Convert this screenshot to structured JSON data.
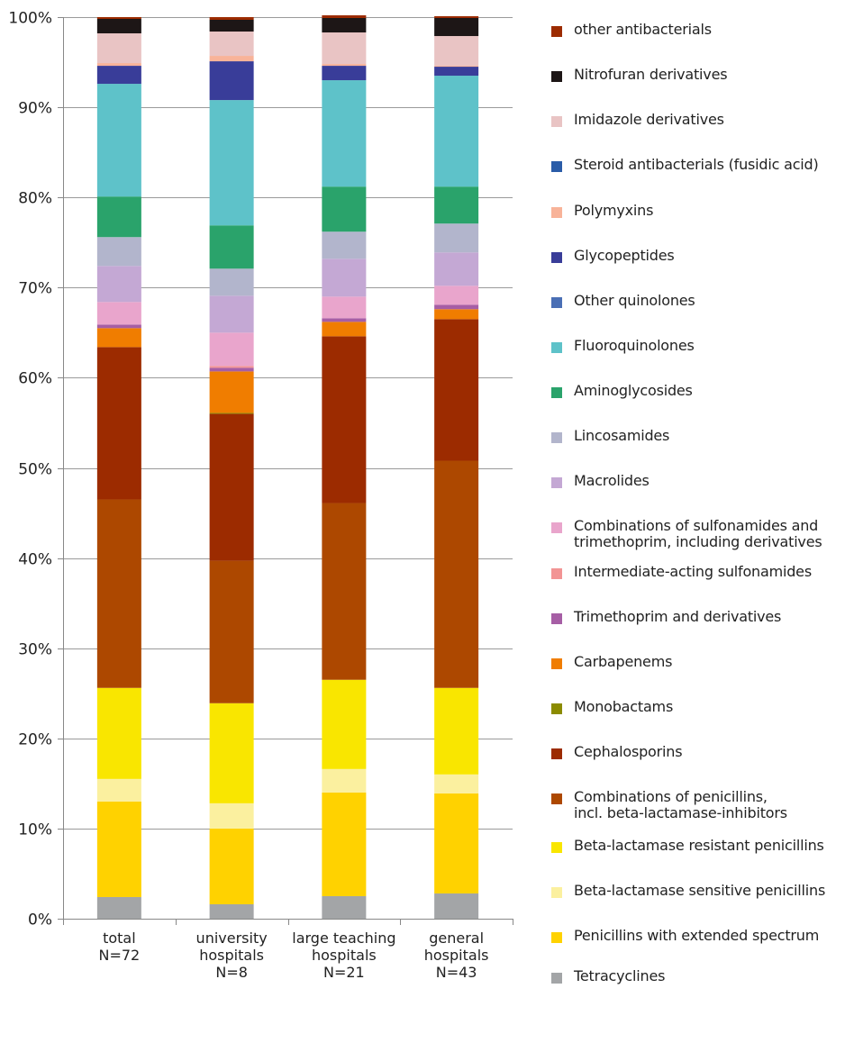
{
  "chart_data": {
    "type": "bar",
    "stacked": true,
    "categories": [
      "total\nN=72",
      "university\nhospitals\nN=8",
      "large teaching\nhospitals\nN=21",
      "general\nhospitals\nN=43"
    ],
    "ylim": [
      0,
      100
    ],
    "yticks": [
      "0%",
      "10%",
      "20%",
      "30%",
      "40%",
      "50%",
      "60%",
      "70%",
      "80%",
      "90%",
      "100%"
    ],
    "grid": true,
    "legend_position": "right",
    "series": [
      {
        "name": "Tetracyclines",
        "color": "#a3a5a7",
        "values": [
          2.4,
          1.6,
          2.5,
          2.8
        ]
      },
      {
        "name": "Penicillins with extended spectrum",
        "color": "#ffd200",
        "values": [
          10.6,
          8.4,
          11.5,
          11.1
        ]
      },
      {
        "name": "Beta-lactamase sensitive penicillins",
        "color": "#fbf09f",
        "values": [
          2.5,
          2.8,
          2.6,
          2.1
        ]
      },
      {
        "name": "Beta-lactamase resistant penicillins",
        "color": "#f9e600",
        "values": [
          10.1,
          11.1,
          9.9,
          9.6
        ]
      },
      {
        "name": "Combinations of penicillins,\nincl. beta-lactamase-inhibitors",
        "color": "#ad4800",
        "values": [
          20.9,
          15.8,
          19.6,
          25.2
        ]
      },
      {
        "name": "Cephalosporins",
        "color": "#9c2b00",
        "values": [
          16.9,
          16.3,
          18.5,
          15.7
        ]
      },
      {
        "name": "Monobactams",
        "color": "#8b8b00",
        "values": [
          0.0,
          0.1,
          0.0,
          0.0
        ]
      },
      {
        "name": "Carbapenems",
        "color": "#f07d00",
        "values": [
          2.1,
          4.6,
          1.6,
          1.1
        ]
      },
      {
        "name": "Trimethoprim and derivatives",
        "color": "#a65ea5",
        "values": [
          0.4,
          0.4,
          0.4,
          0.5
        ]
      },
      {
        "name": "Intermediate-acting sulfonamides",
        "color": "#f29494",
        "values": [
          0.0,
          0.2,
          0.0,
          0.0
        ]
      },
      {
        "name": "Combinations of sulfonamides and\ntrimethoprim, including derivatives",
        "color": "#e9a5cc",
        "values": [
          2.5,
          3.7,
          2.4,
          2.1
        ]
      },
      {
        "name": "Macrolides",
        "color": "#c4a8d4",
        "values": [
          4.0,
          4.1,
          4.2,
          3.7
        ]
      },
      {
        "name": "Lincosamides",
        "color": "#b2b5cc",
        "values": [
          3.2,
          3.0,
          3.0,
          3.2
        ]
      },
      {
        "name": "Aminoglycosides",
        "color": "#2aa36b",
        "values": [
          4.5,
          4.8,
          5.0,
          4.1
        ]
      },
      {
        "name": "Fluoroquinolones",
        "color": "#5ec2c9",
        "values": [
          12.5,
          13.9,
          11.8,
          12.3
        ]
      },
      {
        "name": "Other quinolones",
        "color": "#4a6fb5",
        "values": [
          0.0,
          0.0,
          0.0,
          0.0
        ]
      },
      {
        "name": "Glycopeptides",
        "color": "#393d99",
        "values": [
          2.0,
          4.3,
          1.6,
          1.0
        ]
      },
      {
        "name": "Polymyxins",
        "color": "#f8b399",
        "values": [
          0.3,
          0.6,
          0.2,
          0.1
        ]
      },
      {
        "name": "Steroid antibacterials (fusidic acid)",
        "color": "#2a5ca8",
        "values": [
          0.0,
          0.0,
          0.0,
          0.0
        ]
      },
      {
        "name": "Imidazole derivatives",
        "color": "#e9c4c4",
        "values": [
          3.3,
          2.7,
          3.5,
          3.3
        ]
      },
      {
        "name": "Nitrofuran derivatives",
        "color": "#1d1616",
        "values": [
          1.6,
          1.3,
          1.6,
          2.0
        ]
      },
      {
        "name": "other antibacterials",
        "color": "#9c2b00",
        "values": [
          0.2,
          0.3,
          0.3,
          0.2
        ]
      }
    ]
  }
}
